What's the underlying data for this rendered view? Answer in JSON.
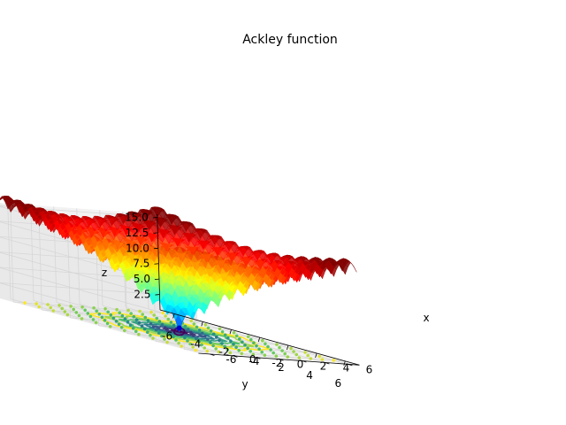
{
  "chart_data": {
    "type": "surface3d",
    "title": "Ackley function",
    "xlabel": "x",
    "ylabel": "y",
    "zlabel": "z",
    "function": "ackley",
    "x_range": [
      -7,
      7
    ],
    "y_range": [
      -7,
      7
    ],
    "x_ticks": [
      "-6",
      "-4",
      "-2",
      "0",
      "2",
      "4",
      "6"
    ],
    "y_ticks": [
      "-6",
      "-4",
      "-2",
      "0",
      "2",
      "4",
      "6"
    ],
    "z_ticks": [
      "2.5",
      "5.0",
      "7.5",
      "10.0",
      "12.5",
      "15.0"
    ],
    "zlim": [
      0,
      15.5
    ],
    "surface_colormap": "jet",
    "contour_colormap": "viridis",
    "contour_offset": 0,
    "minimum": {
      "x": 0,
      "y": 0,
      "z": 0
    },
    "grid": true
  }
}
